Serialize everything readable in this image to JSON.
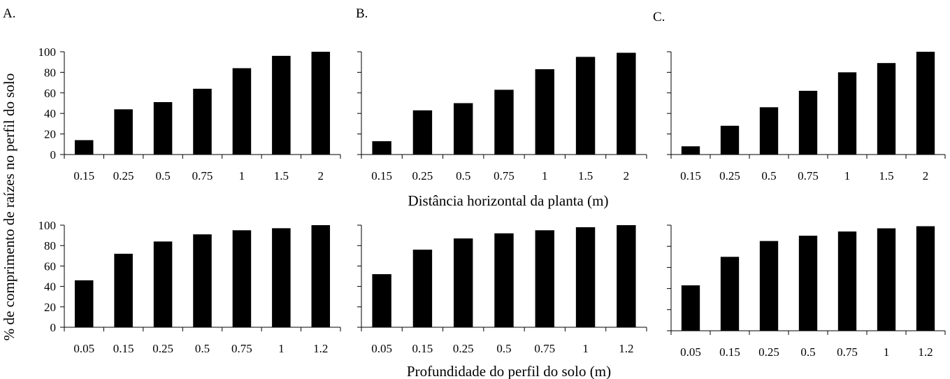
{
  "figure": {
    "ylabel": "% de comprimento de raízes no perfil do solo",
    "xlabel_top": "Distância horizontal da planta (m)",
    "xlabel_bottom": "Profundidade do perfil do solo (m)",
    "panel_letters": [
      "A.",
      "B.",
      "C."
    ]
  },
  "chart_data": [
    {
      "panel": "A.",
      "row": "top",
      "type": "bar",
      "categories": [
        "0.15",
        "0.25",
        "0.5",
        "0.75",
        "1",
        "1.5",
        "2"
      ],
      "values": [
        14,
        44,
        51,
        64,
        84,
        96,
        100
      ],
      "ylim": [
        0,
        100
      ],
      "yticks": [
        0,
        20,
        40,
        60,
        80,
        100
      ],
      "show_ytick_labels": true,
      "bar_color": "#000000"
    },
    {
      "panel": "B.",
      "row": "top",
      "type": "bar",
      "categories": [
        "0.15",
        "0.25",
        "0.5",
        "0.75",
        "1",
        "1.5",
        "2"
      ],
      "values": [
        13,
        43,
        50,
        63,
        83,
        95,
        99
      ],
      "ylim": [
        0,
        100
      ],
      "yticks": [
        0,
        20,
        40,
        60,
        80,
        100
      ],
      "show_ytick_labels": false,
      "bar_color": "#000000"
    },
    {
      "panel": "C.",
      "row": "top",
      "type": "bar",
      "categories": [
        "0.15",
        "0.25",
        "0.5",
        "0.75",
        "1",
        "1.5",
        "2"
      ],
      "values": [
        8,
        28,
        46,
        62,
        80,
        89,
        100
      ],
      "ylim": [
        0,
        100
      ],
      "yticks": [
        0,
        20,
        40,
        60,
        80,
        100
      ],
      "show_ytick_labels": false,
      "bar_color": "#000000"
    },
    {
      "panel": "A.",
      "row": "bottom",
      "type": "bar",
      "categories": [
        "0.05",
        "0.15",
        "0.25",
        "0.5",
        "0.75",
        "1",
        "1.2"
      ],
      "values": [
        46,
        72,
        84,
        91,
        95,
        97,
        100
      ],
      "ylim": [
        0,
        100
      ],
      "yticks": [
        0,
        20,
        40,
        60,
        80,
        100
      ],
      "show_ytick_labels": true,
      "bar_color": "#000000"
    },
    {
      "panel": "B.",
      "row": "bottom",
      "type": "bar",
      "categories": [
        "0.05",
        "0.15",
        "0.25",
        "0.5",
        "0.75",
        "1",
        "1.2"
      ],
      "values": [
        52,
        76,
        87,
        92,
        95,
        98,
        100
      ],
      "ylim": [
        0,
        100
      ],
      "yticks": [
        0,
        20,
        40,
        60,
        80,
        100
      ],
      "show_ytick_labels": false,
      "bar_color": "#000000"
    },
    {
      "panel": "C.",
      "row": "bottom",
      "type": "bar",
      "categories": [
        "0.05",
        "0.15",
        "0.25",
        "0.5",
        "0.75",
        "1",
        "1.2"
      ],
      "values": [
        43,
        70,
        85,
        90,
        94,
        97,
        99
      ],
      "ylim": [
        0,
        100
      ],
      "yticks": [
        0,
        20,
        40,
        60,
        80,
        100
      ],
      "show_ytick_labels": false,
      "bar_color": "#000000"
    }
  ]
}
